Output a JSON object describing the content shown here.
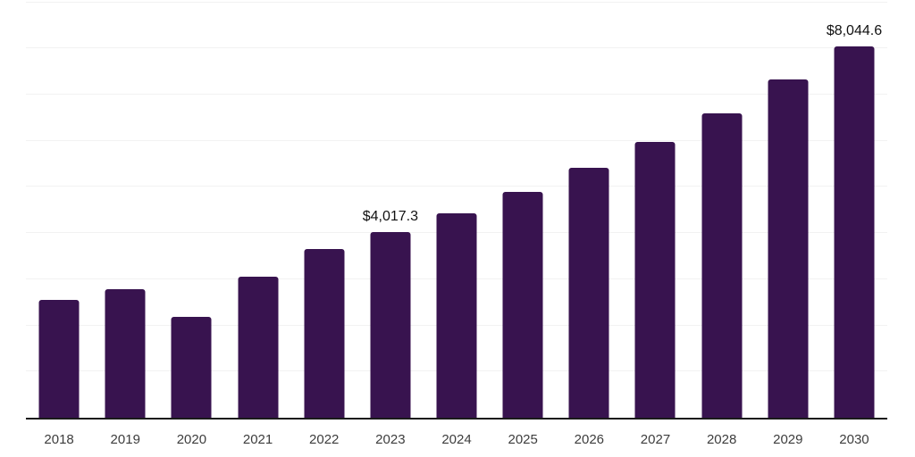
{
  "chart_data": {
    "type": "bar",
    "categories": [
      "2018",
      "2019",
      "2020",
      "2021",
      "2022",
      "2023",
      "2024",
      "2025",
      "2026",
      "2027",
      "2028",
      "2029",
      "2030"
    ],
    "values": [
      2550,
      2790,
      2180,
      3050,
      3650,
      4017.3,
      4430,
      4900,
      5410,
      5970,
      6590,
      7320,
      8044.6
    ],
    "value_labels": [
      "",
      "",
      "",
      "",
      "",
      "$4,017.3",
      "",
      "",
      "",
      "",
      "",
      "",
      "$8,044.6"
    ],
    "title": "",
    "xlabel": "",
    "ylabel": "",
    "ylim": [
      0,
      9050
    ],
    "gridline_step": 1000,
    "grid": true,
    "legend_position": "none",
    "colors": {
      "bar": "#38134F",
      "gridline": "#F2F2F2",
      "axis_line": "#1A1A1A",
      "tick_label": "#3D3D3D",
      "data_label": "#111111",
      "background": "#FFFFFF"
    }
  }
}
